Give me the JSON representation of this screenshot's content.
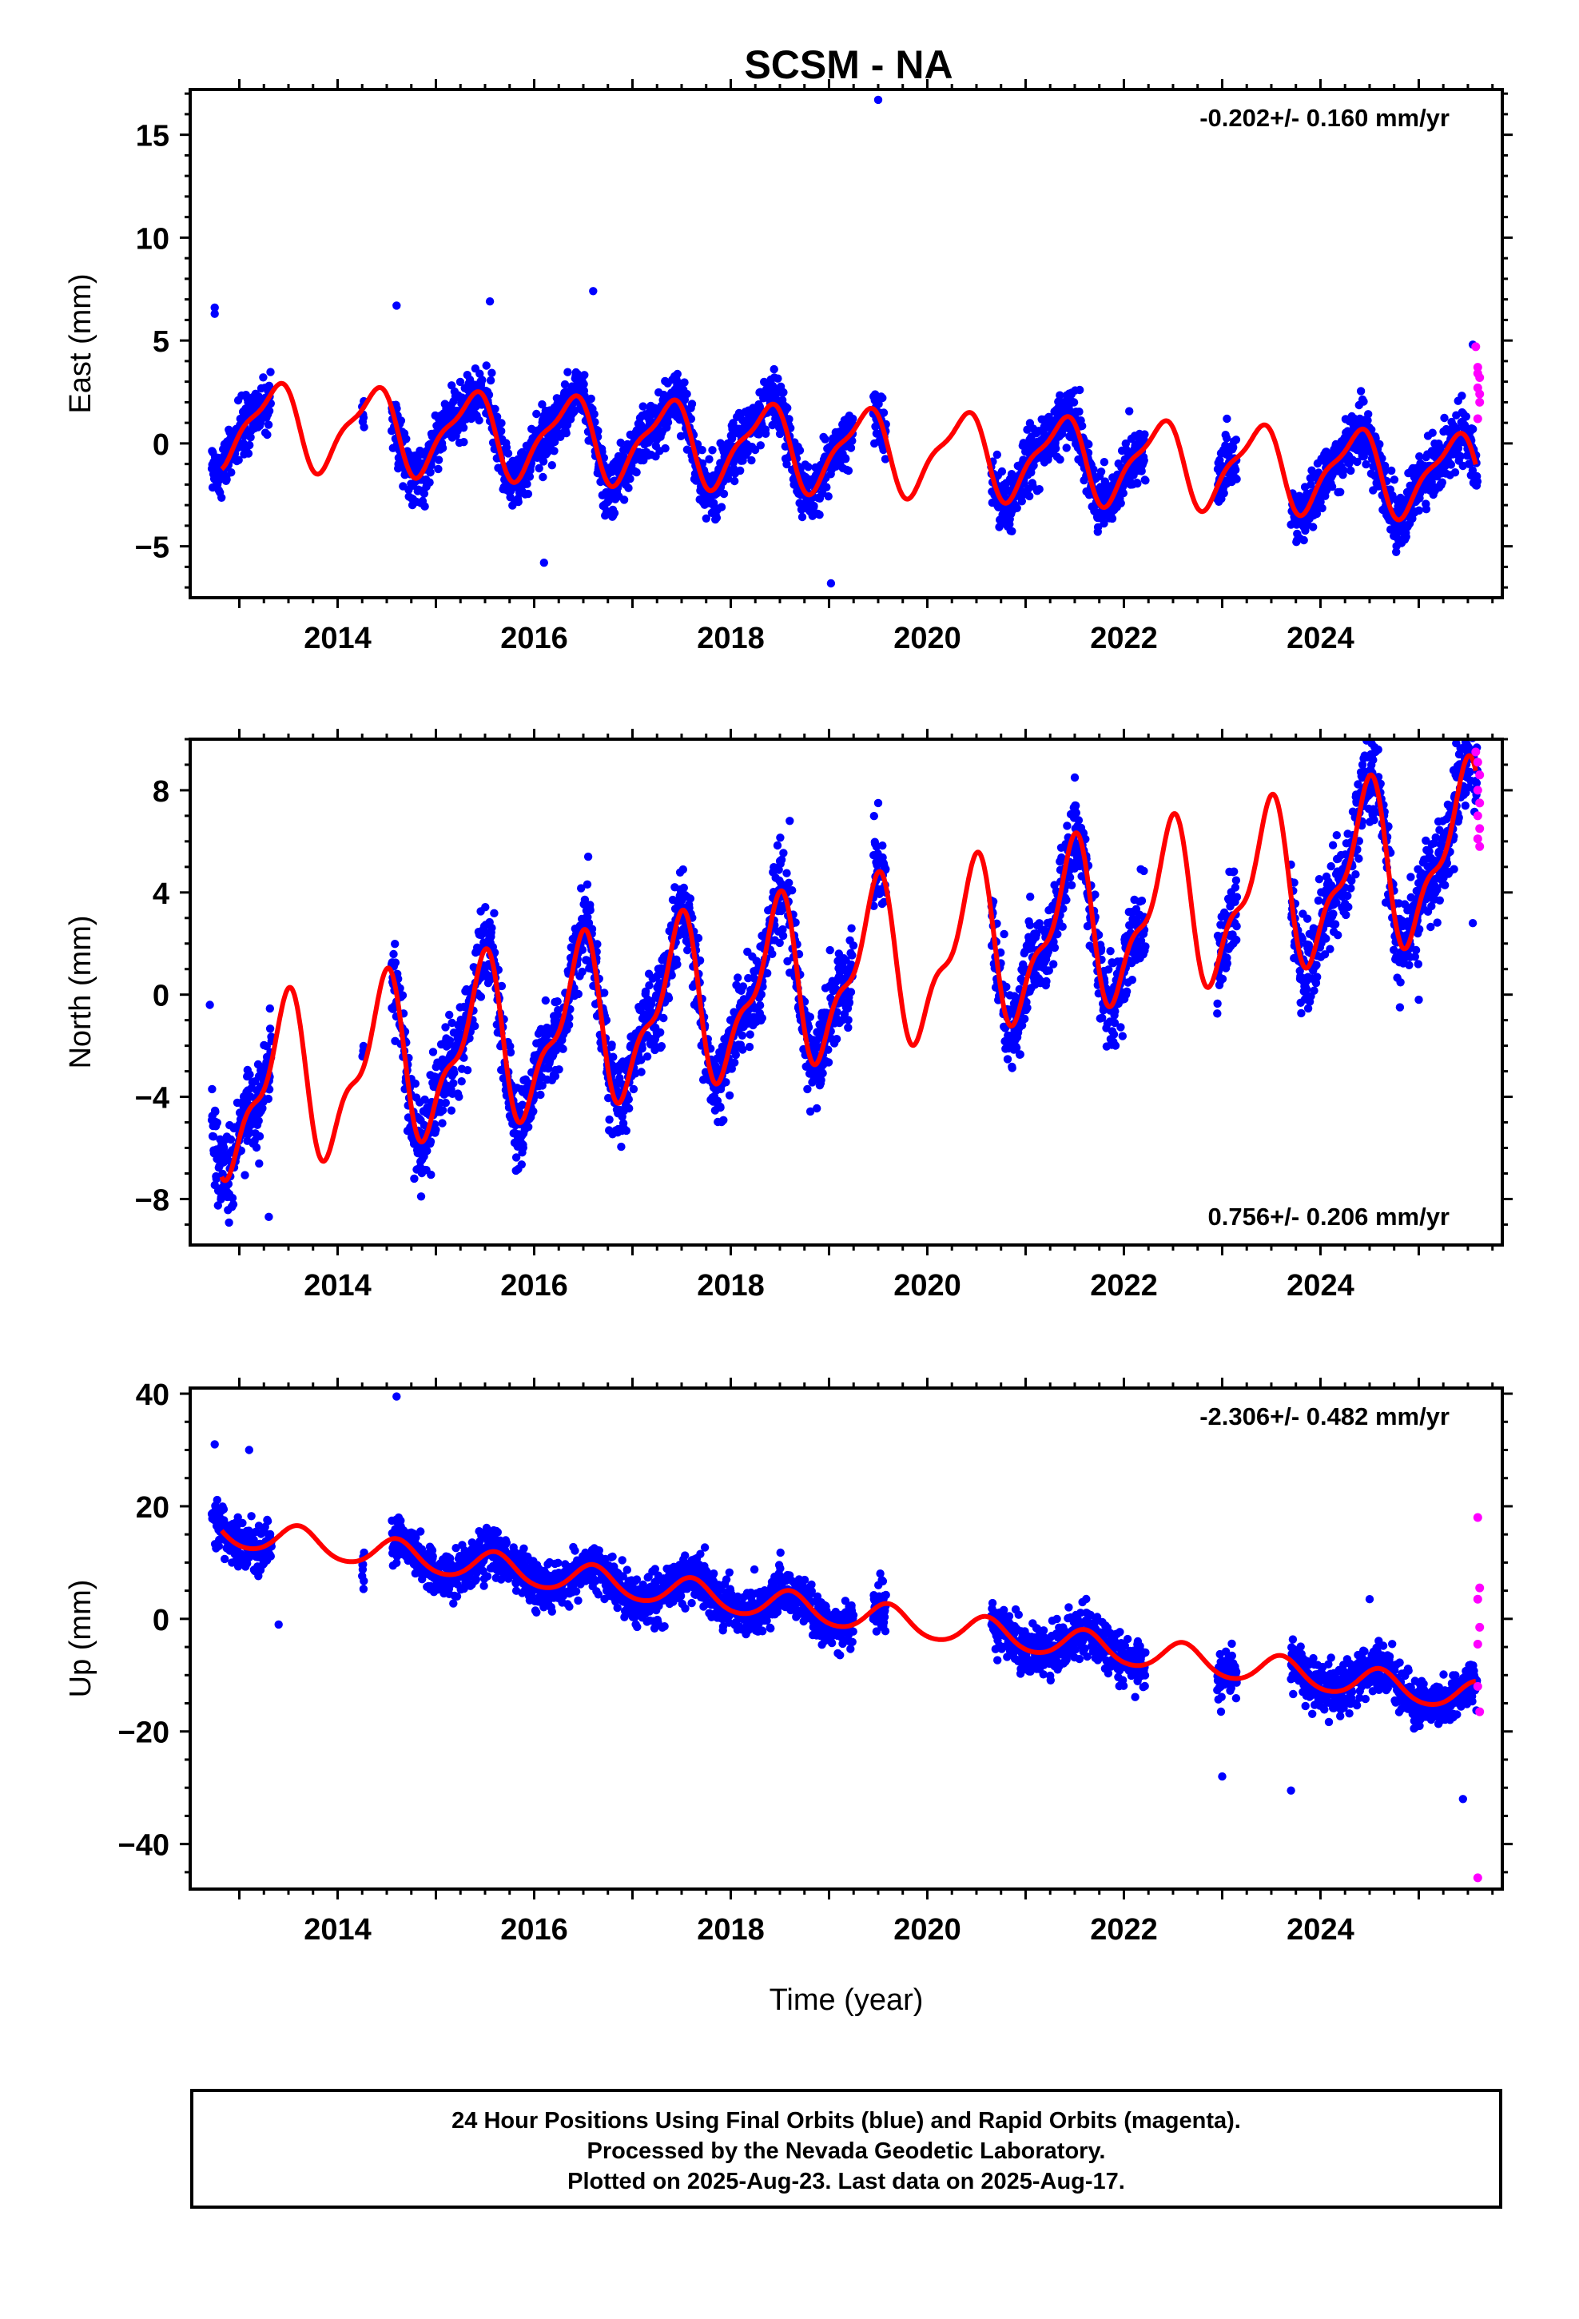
{
  "title": "SCSM - NA",
  "colors": {
    "final": "#0000ff",
    "rapid": "#ff00ff",
    "model": "#ff0000",
    "axis": "#000000"
  },
  "chart_data": [
    {
      "type": "scatter",
      "name": "East",
      "ylabel": "East (mm)",
      "xlim": [
        2012.5,
        2025.85
      ],
      "ylim": [
        -7.5,
        17.2
      ],
      "yticks": [
        15,
        10,
        5,
        0,
        -5
      ],
      "yminor": 1,
      "xticks": [
        2014,
        2016,
        2018,
        2020,
        2022,
        2024
      ],
      "rate": "-0.202+/- 0.160 mm/yr",
      "rate_position": "top-right",
      "model": {
        "offset": 1.0,
        "rate": -0.202,
        "t0": 2012.8,
        "amp_annual": 1.9,
        "phase_annual": 2015.35,
        "amp_semi": 0.6,
        "phase_semi": 2015.5
      },
      "final_points": {
        "noise": 1.2,
        "outliers": [
          [
            2012.75,
            6.6
          ],
          [
            2012.75,
            6.3
          ],
          [
            2014.6,
            6.7
          ],
          [
            2015.55,
            6.9
          ],
          [
            2016.6,
            7.4
          ],
          [
            2019.5,
            16.7
          ],
          [
            2019.02,
            -6.8
          ],
          [
            2016.1,
            -5.8
          ],
          [
            2025.55,
            4.8
          ]
        ]
      },
      "rapid_points": {
        "x": [
          2025.58,
          2025.6,
          2025.62,
          2025.6,
          2025.62,
          2025.6,
          2025.62,
          2025.6
        ],
        "y": [
          4.7,
          3.7,
          3.2,
          2.7,
          2.0,
          1.2,
          2.4,
          3.4
        ]
      }
    },
    {
      "type": "scatter",
      "name": "North",
      "ylabel": "North (mm)",
      "xlim": [
        2012.5,
        2025.85
      ],
      "ylim": [
        -9.8,
        10.0
      ],
      "yticks": [
        8,
        4,
        0,
        -4,
        -8
      ],
      "yminor": 1,
      "xticks": [
        2014,
        2016,
        2018,
        2020,
        2022,
        2024
      ],
      "rate": "0.756+/- 0.206 mm/yr",
      "rate_position": "bottom-right",
      "model": {
        "offset": -4.0,
        "rate": 0.756,
        "t0": 2012.8,
        "amp_annual": 2.9,
        "phase_annual": 2015.45,
        "amp_semi": 1.2,
        "phase_semi": 2015.55
      },
      "final_points": {
        "noise": 1.4,
        "outliers": [
          [
            2012.7,
            -0.4
          ],
          [
            2013.3,
            -8.7
          ],
          [
            2014.85,
            -7.9
          ],
          [
            2016.55,
            5.4
          ],
          [
            2019.5,
            7.5
          ],
          [
            2018.6,
            6.8
          ],
          [
            2021.5,
            8.5
          ],
          [
            2025.0,
            -0.2
          ],
          [
            2025.55,
            2.8
          ],
          [
            2025.5,
            9.5
          ]
        ]
      },
      "rapid_points": {
        "x": [
          2025.58,
          2025.6,
          2025.62,
          2025.6,
          2025.62,
          2025.6,
          2025.62,
          2025.6,
          2025.62
        ],
        "y": [
          9.5,
          9.1,
          8.6,
          8.0,
          7.5,
          7.0,
          6.5,
          6.1,
          5.8
        ]
      }
    },
    {
      "type": "scatter",
      "name": "Up",
      "ylabel": "Up (mm)",
      "xlabel": "Time (year)",
      "xlim": [
        2012.5,
        2025.85
      ],
      "ylim": [
        -48,
        41
      ],
      "yticks": [
        40,
        20,
        0,
        -20,
        -40
      ],
      "yminor": 5,
      "xticks": [
        2014,
        2016,
        2018,
        2020,
        2022,
        2024
      ],
      "rate": "-2.306+/- 0.482 mm/yr",
      "rate_position": "top-right",
      "model": {
        "offset": 15.5,
        "rate": -2.306,
        "t0": 2012.8,
        "amp_annual": 2.6,
        "phase_annual": 2015.6,
        "amp_semi": 0.3,
        "phase_semi": 2015.6
      },
      "final_points": {
        "noise": 3.6,
        "outliers": [
          [
            2014.6,
            39.5
          ],
          [
            2012.75,
            31.0
          ],
          [
            2013.1,
            30.0
          ],
          [
            2023.0,
            -28.0
          ],
          [
            2023.7,
            -30.5
          ],
          [
            2025.45,
            -32.0
          ],
          [
            2024.5,
            3.5
          ],
          [
            2013.4,
            -1.0
          ]
        ]
      },
      "rapid_points": {
        "x": [
          2025.6,
          2025.62,
          2025.6,
          2025.62,
          2025.6,
          2025.6,
          2025.62,
          2025.6
        ],
        "y": [
          18.0,
          5.5,
          3.5,
          -1.5,
          -4.5,
          -12.0,
          -16.5,
          -46.0
        ]
      }
    }
  ],
  "footer": {
    "line1": "24 Hour Positions Using Final Orbits (blue) and Rapid Orbits (magenta).",
    "line2": "Processed by the Nevada Geodetic Laboratory.",
    "line3": "Plotted on 2025-Aug-23. Last data on 2025-Aug-17."
  }
}
